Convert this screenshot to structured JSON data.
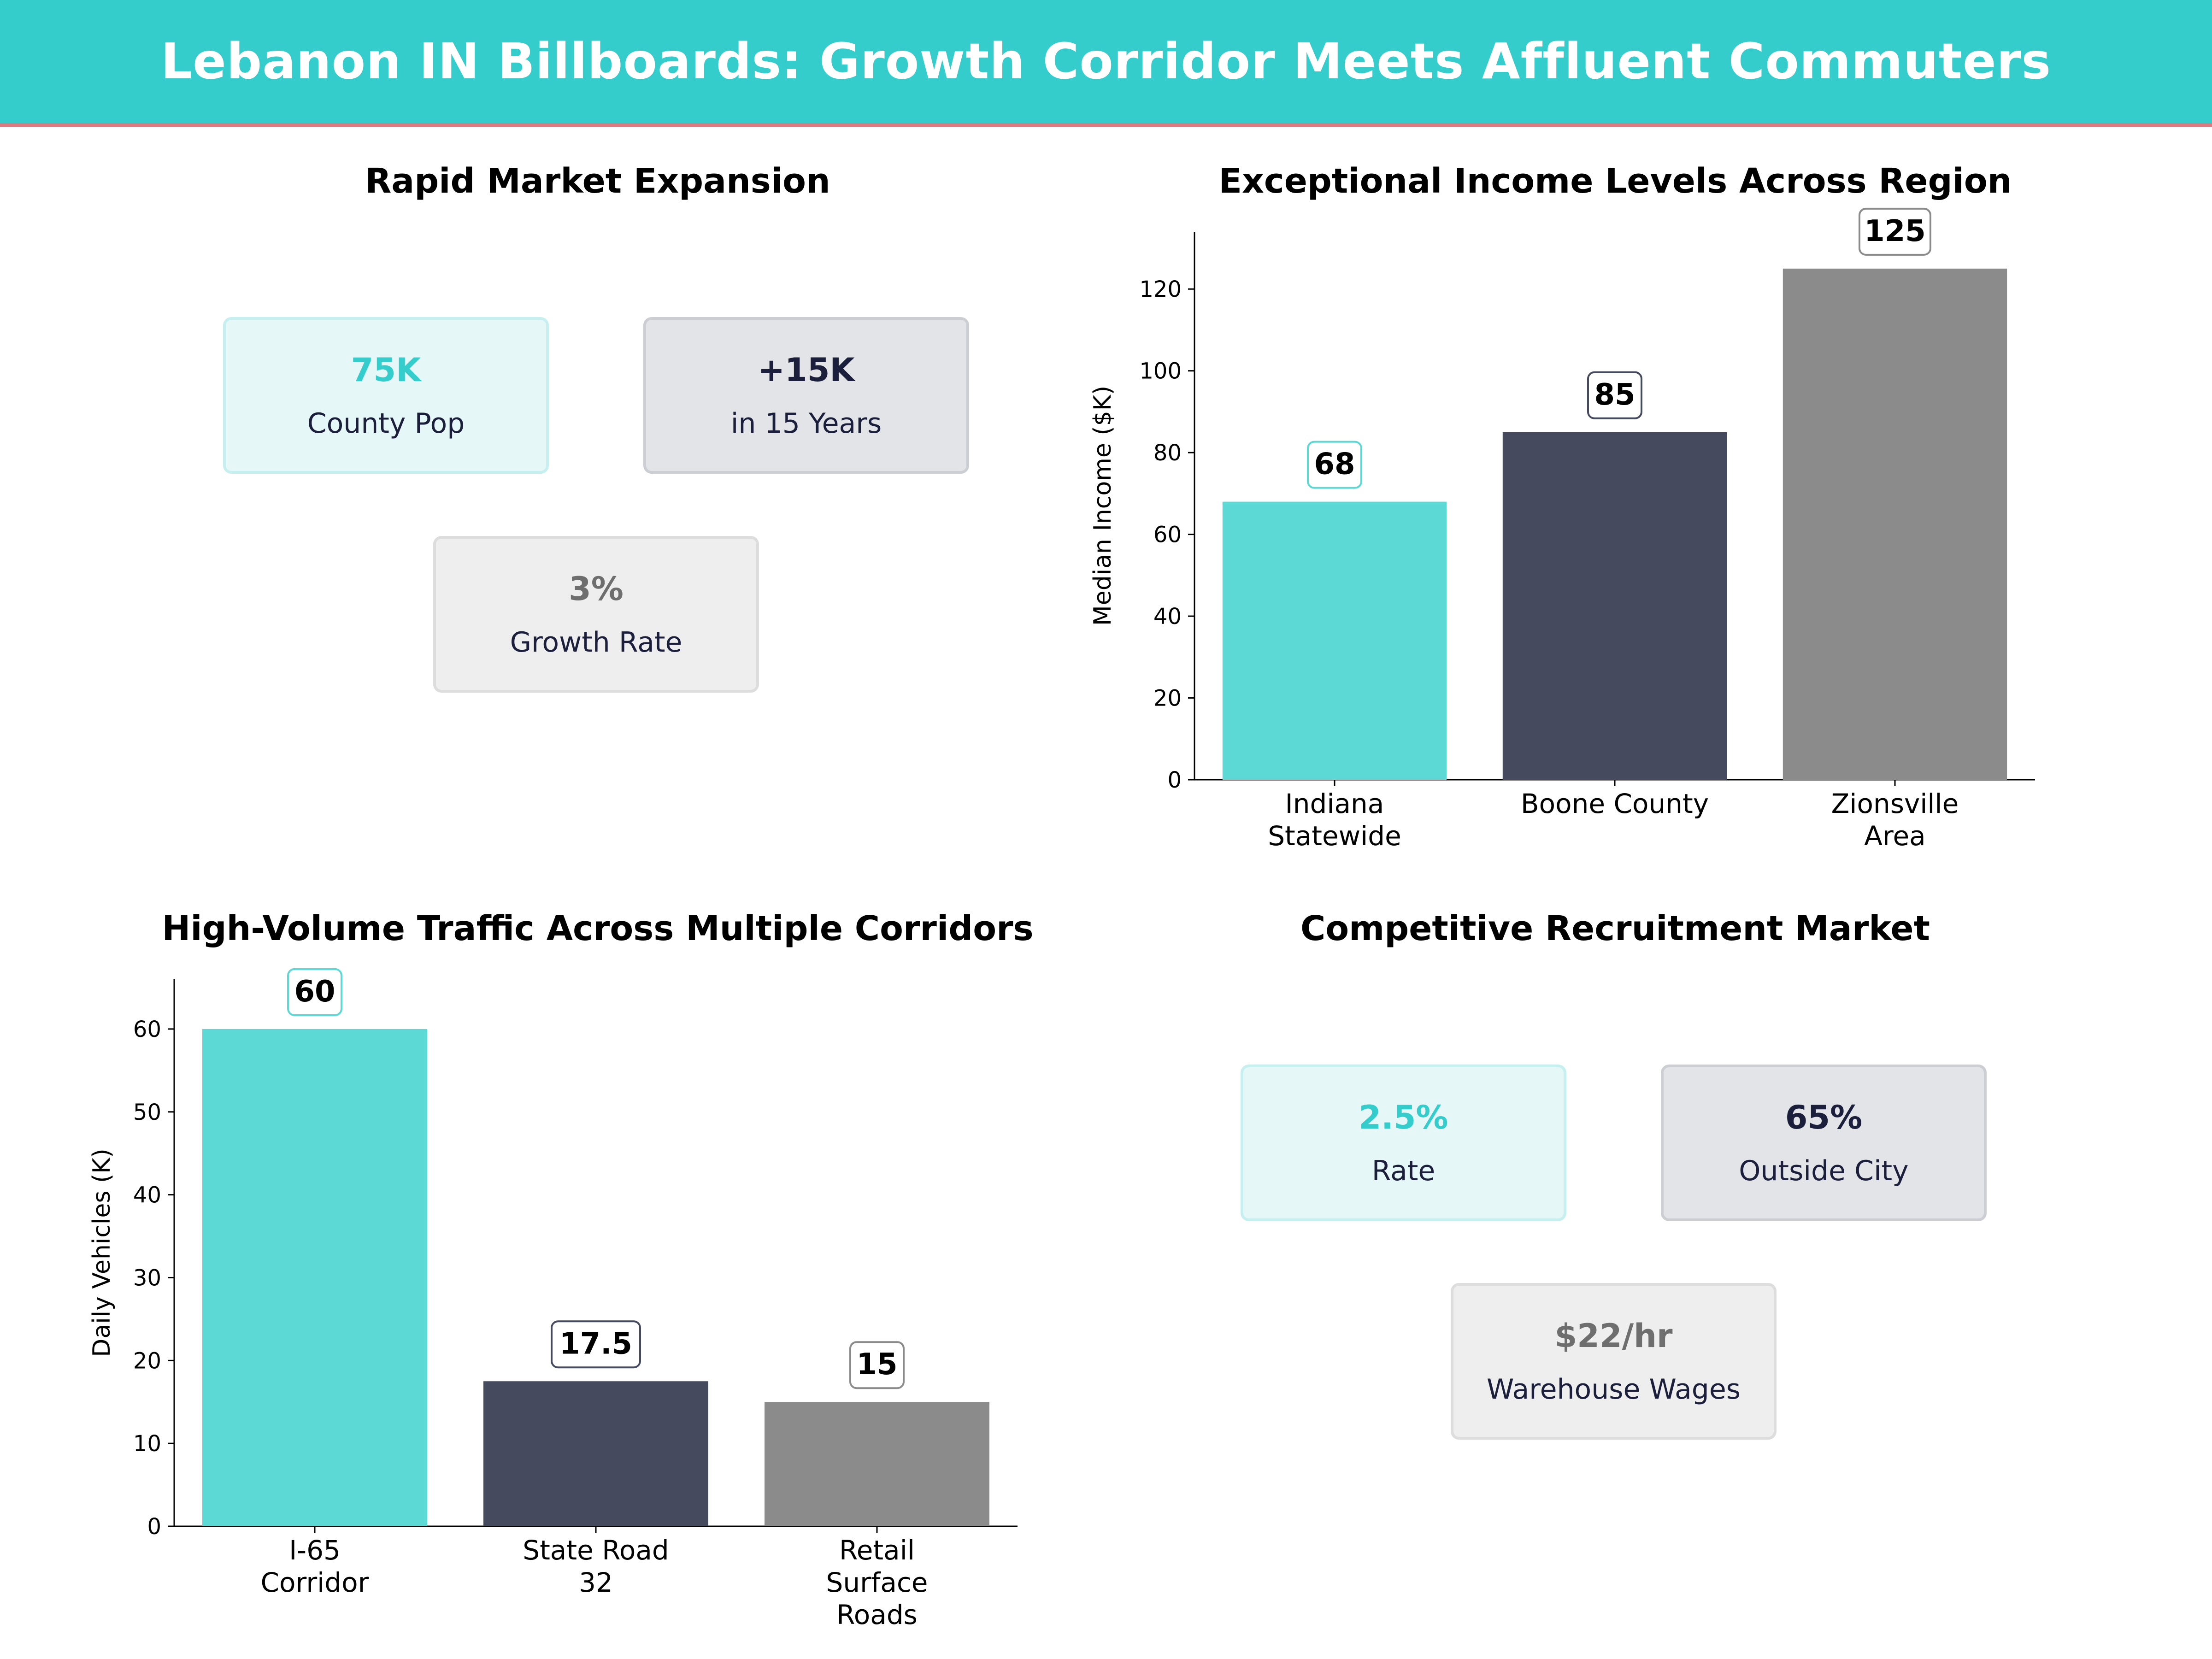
{
  "header": {
    "title": "Lebanon IN Billboards: Growth Corridor Meets Affluent Commuters"
  },
  "panels": {
    "market": {
      "title": "Rapid Market Expansion",
      "kpis": [
        {
          "value": "75K",
          "label": "County Pop"
        },
        {
          "value": "+15K",
          "label": "in 15 Years"
        },
        {
          "value": "3%",
          "label": "Growth Rate"
        }
      ]
    },
    "income": {
      "title": "Exceptional Income Levels Across Region"
    },
    "traffic": {
      "title": "High-Volume Traffic Across Multiple Corridors"
    },
    "recruit": {
      "title": "Competitive Recruitment Market",
      "kpis": [
        {
          "value": "2.5%",
          "label": "Rate"
        },
        {
          "value": "65%",
          "label": "Outside City"
        },
        {
          "value": "$22/hr",
          "label": "Warehouse Wages"
        }
      ]
    }
  },
  "colors": {
    "teal": "#5CD8D5",
    "navy": "#454A5F",
    "gray": "#8B8B8B",
    "header": "#35CCCC",
    "accent": "#E07A82"
  },
  "chart_data": [
    {
      "type": "bar",
      "title": "Exceptional Income Levels Across Region",
      "categories": [
        [
          "Indiana",
          "Statewide"
        ],
        [
          "Boone County"
        ],
        [
          "Zionsville",
          "Area"
        ]
      ],
      "values": [
        68,
        85,
        125
      ],
      "data_labels": [
        "68",
        "85",
        "125"
      ],
      "xlabel": "",
      "ylabel": "Median Income ($K)",
      "ylim": [
        0,
        134
      ],
      "yticks": [
        0,
        20,
        40,
        60,
        80,
        100,
        120
      ],
      "grid": false,
      "colors": [
        "#5CD8D5",
        "#454A5F",
        "#8B8B8B"
      ]
    },
    {
      "type": "bar",
      "title": "High-Volume Traffic Across Multiple Corridors",
      "categories": [
        [
          "I-65",
          "Corridor"
        ],
        [
          "State Road",
          "32"
        ],
        [
          "Retail",
          "Surface",
          "Roads"
        ]
      ],
      "values": [
        60,
        17.5,
        15
      ],
      "data_labels": [
        "60",
        "17.5",
        "15"
      ],
      "xlabel": "",
      "ylabel": "Daily Vehicles (K)",
      "ylim": [
        0,
        66
      ],
      "yticks": [
        0,
        10,
        20,
        30,
        40,
        50,
        60
      ],
      "grid": false,
      "colors": [
        "#5CD8D5",
        "#454A5F",
        "#8B8B8B"
      ]
    }
  ]
}
